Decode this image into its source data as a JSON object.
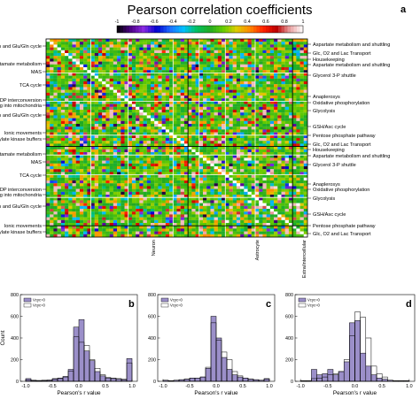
{
  "figure": {
    "title": "Pearson correlation coefficients",
    "panel_letters": [
      "a",
      "b",
      "c",
      "d"
    ],
    "colorbar": {
      "ticks": [
        "-1",
        "-0.8",
        "-0.6",
        "-0.4",
        "-0.2",
        "0",
        "0.2",
        "0.4",
        "0.6",
        "0.8",
        "1"
      ],
      "stops": [
        "#000000",
        "#4b0082",
        "#8a2be2",
        "#0000cd",
        "#1e6fff",
        "#00bfff",
        "#00c060",
        "#22aa22",
        "#66cc00",
        "#ddcc00",
        "#ff8800",
        "#ff2200",
        "#bb0000",
        "#e8a0a0",
        "#ffffff"
      ]
    }
  },
  "chart_data": [
    {
      "type": "heatmap",
      "title": "Pearson correlation coefficients",
      "value_range": [
        -1,
        1
      ],
      "left_labels": [
        "Neurotransmission and Glu/Gln cycle",
        "Glutamate metabolism",
        "MAS",
        "TCA cycle",
        "NAD/NADP interconversion",
        "Pyruvate shuttling into mitochondria",
        "Neurotransmission and Glu/Gln cycle",
        "Ionic movements",
        "Creatine & adenylate kinase buffers",
        "Glutamate metabolism",
        "MAS",
        "TCA cycle",
        "NAD/NADP interconversion",
        "Pyruvate shuttling into mitochondria",
        "Neurotransmission and Glu/Gln cycle",
        "Ionic movements",
        "Creatine & adenylate kinase buffers"
      ],
      "right_labels": [
        "Aspartate metabolism and shuttling",
        "Glc, O2 and Lac Transport",
        "Housekeeping",
        "Aspartate metabolism and shuttling",
        "Glycerol 3-P shuttle",
        "Anaplerosys",
        "Oxidative phosphorylation",
        "Glycolysis",
        "GSH/Asc cycle",
        "Pentose phosphate pathway",
        "Glc, O2 and Lac Transport",
        "Housekeeping",
        "Aspartate metabolism and shuttling",
        "Glycerol 3-P shuttle",
        "Anaplerosys",
        "Oxidative phosphorylation",
        "Glycolysis",
        "GSH/Asc cycle",
        "Pentose phosphate pathway",
        "Glc, O2 and Lac Transport"
      ],
      "bottom_labels": [
        "Neuron",
        "Astrocyte",
        "Extra/intercellular"
      ]
    },
    {
      "type": "bar",
      "panel": "b",
      "xlabel": "Pearson's r value",
      "ylabel": "Count",
      "xlim": [
        -1.1,
        1.1
      ],
      "ylim": [
        0,
        800
      ],
      "xticks": [
        "-1.0",
        "-0.5",
        "0.0",
        "0.5",
        "1.0"
      ],
      "yticks": [
        "0",
        "200",
        "400",
        "600",
        "800"
      ],
      "bin_width": 0.1,
      "bin_starts": [
        -1.0,
        -0.9,
        -0.8,
        -0.7,
        -0.6,
        -0.5,
        -0.4,
        -0.3,
        -0.2,
        -0.1,
        0.0,
        0.1,
        0.2,
        0.3,
        0.4,
        0.5,
        0.6,
        0.7,
        0.8,
        0.9
      ],
      "series": [
        {
          "name": "Vcyc=0",
          "values": [
            25,
            10,
            8,
            10,
            12,
            25,
            30,
            45,
            110,
            500,
            570,
            280,
            190,
            90,
            50,
            30,
            25,
            20,
            15,
            210
          ]
        },
        {
          "name": "Vcyc=0",
          "values": [
            15,
            5,
            5,
            5,
            8,
            18,
            25,
            40,
            95,
            410,
            360,
            330,
            200,
            120,
            60,
            35,
            30,
            25,
            20,
            170
          ]
        }
      ]
    },
    {
      "type": "bar",
      "panel": "c",
      "xlabel": "Pearson's r value",
      "ylabel": "",
      "xlim": [
        -1.1,
        1.1
      ],
      "ylim": [
        0,
        800
      ],
      "xticks": [
        "-1.0",
        "-0.5",
        "0.0",
        "0.5",
        "1.0"
      ],
      "yticks": [
        "0",
        "200",
        "400",
        "600",
        "800"
      ],
      "bin_width": 0.1,
      "bin_starts": [
        -1.0,
        -0.9,
        -0.8,
        -0.7,
        -0.6,
        -0.5,
        -0.4,
        -0.3,
        -0.2,
        -0.1,
        0.0,
        0.1,
        0.2,
        0.3,
        0.4,
        0.5,
        0.6,
        0.7,
        0.8,
        0.9
      ],
      "series": [
        {
          "name": "Vcyc=0",
          "values": [
            10,
            5,
            10,
            15,
            20,
            30,
            30,
            40,
            120,
            600,
            400,
            220,
            110,
            60,
            40,
            30,
            20,
            15,
            10,
            25
          ]
        },
        {
          "name": "Vcyc=0",
          "values": [
            10,
            5,
            10,
            15,
            20,
            30,
            30,
            40,
            130,
            540,
            380,
            270,
            200,
            90,
            50,
            30,
            20,
            15,
            10,
            20
          ]
        }
      ]
    },
    {
      "type": "bar",
      "panel": "d",
      "xlabel": "Pearson's r value",
      "ylabel": "",
      "xlim": [
        -1.1,
        1.1
      ],
      "ylim": [
        0,
        800
      ],
      "xticks": [
        "-1.0",
        "-0.5",
        "0.0",
        "0.5",
        "1.0"
      ],
      "yticks": [
        "0",
        "200",
        "400",
        "600",
        "800"
      ],
      "bin_width": 0.1,
      "bin_starts": [
        -1.0,
        -0.9,
        -0.8,
        -0.7,
        -0.6,
        -0.5,
        -0.4,
        -0.3,
        -0.2,
        -0.1,
        0.0,
        0.1,
        0.2,
        0.3,
        0.4,
        0.5,
        0.6,
        0.7,
        0.8,
        0.9
      ],
      "series": [
        {
          "name": "Vcyc=0",
          "values": [
            5,
            5,
            110,
            60,
            70,
            110,
            60,
            90,
            180,
            540,
            560,
            260,
            140,
            60,
            30,
            20,
            10,
            5,
            5,
            5
          ]
        },
        {
          "name": "Vcyc=0",
          "values": [
            5,
            5,
            25,
            30,
            40,
            60,
            70,
            90,
            200,
            420,
            640,
            590,
            400,
            140,
            70,
            40,
            10,
            5,
            5,
            5
          ]
        }
      ]
    }
  ]
}
